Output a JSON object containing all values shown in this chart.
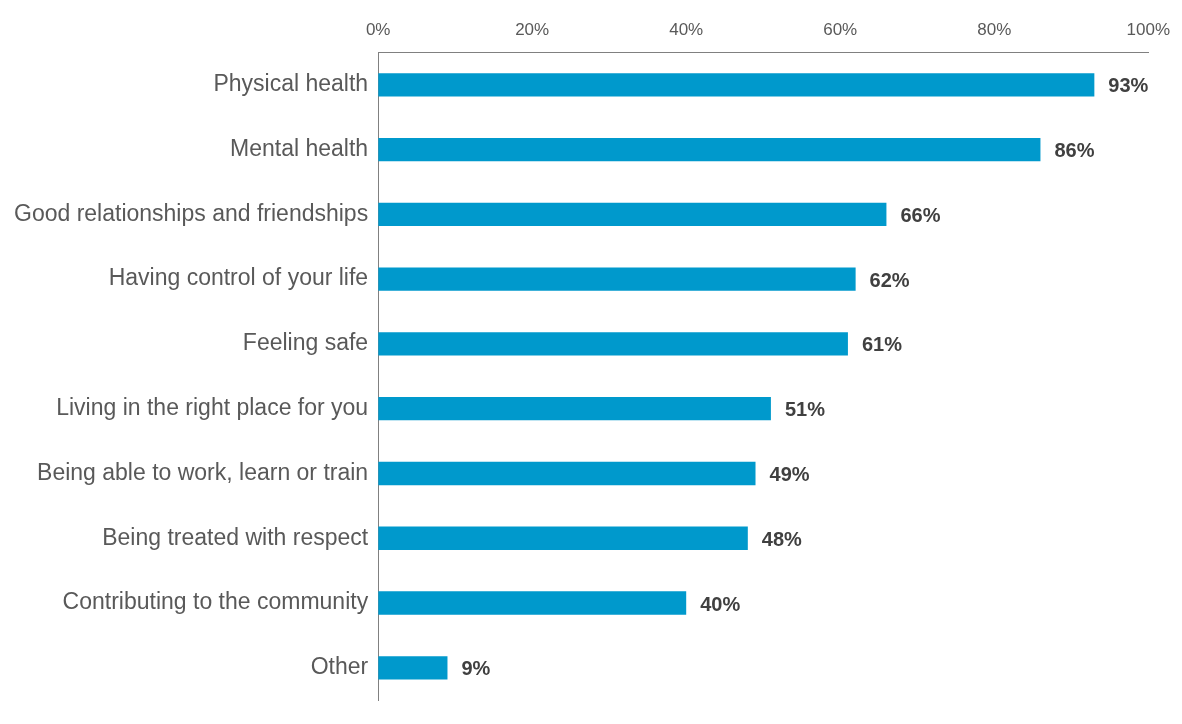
{
  "chart_data": {
    "type": "bar",
    "orientation": "horizontal",
    "categories": [
      "Physical health",
      "Mental health",
      "Good relationships and friendships",
      "Having control of your life",
      "Feeling safe",
      "Living in the right place for you",
      "Being able to work, learn or train",
      "Being treated with respect",
      "Contributing to the community",
      "Other"
    ],
    "values": [
      93,
      86,
      66,
      62,
      61,
      51,
      49,
      48,
      40,
      9
    ],
    "value_labels": [
      "93%",
      "86%",
      "66%",
      "62%",
      "61%",
      "51%",
      "49%",
      "48%",
      "40%",
      "9%"
    ],
    "color": "#0099cc",
    "xlim": [
      0,
      100
    ],
    "xticks": [
      {
        "value": 0,
        "label": "0%"
      },
      {
        "value": 20,
        "label": "20%"
      },
      {
        "value": 40,
        "label": "40%"
      },
      {
        "value": 60,
        "label": "60%"
      },
      {
        "value": 80,
        "label": "80%"
      },
      {
        "value": 100,
        "label": "100%"
      }
    ]
  }
}
